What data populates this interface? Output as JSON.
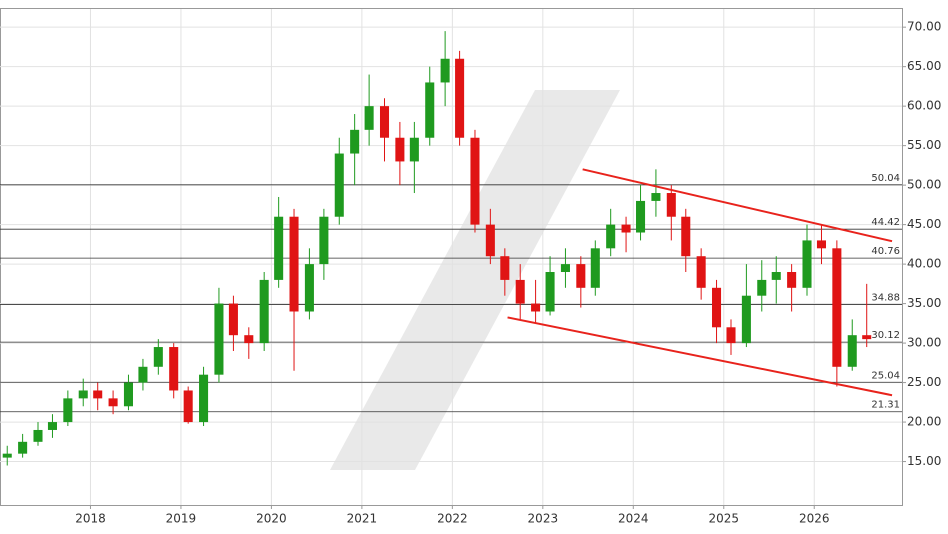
{
  "chart_data": {
    "type": "candlestick",
    "x": [
      2017.08,
      2017.25,
      2017.42,
      2017.58,
      2017.75,
      2017.92,
      2018.08,
      2018.25,
      2018.42,
      2018.58,
      2018.75,
      2018.92,
      2019.08,
      2019.25,
      2019.42,
      2019.58,
      2019.75,
      2019.92,
      2020.08,
      2020.25,
      2020.42,
      2020.58,
      2020.75,
      2020.92,
      2021.08,
      2021.25,
      2021.42,
      2021.58,
      2021.75,
      2021.92,
      2022.08,
      2022.25,
      2022.42,
      2022.58,
      2022.75,
      2022.92,
      2023.08,
      2023.25,
      2023.42,
      2023.58,
      2023.75,
      2023.92,
      2024.08,
      2024.25,
      2024.42,
      2024.58,
      2024.75,
      2024.92,
      2025.08,
      2025.25,
      2025.42,
      2025.58,
      2025.75,
      2025.92,
      2026.08,
      2026.25,
      2026.42,
      2026.58
    ],
    "open": [
      15.5,
      16,
      17.5,
      19,
      20,
      23,
      24,
      23,
      22,
      25,
      27,
      29.5,
      24,
      20,
      26,
      35,
      31,
      30,
      38,
      46,
      34,
      40,
      46,
      54,
      57,
      60,
      56,
      53,
      56,
      63,
      66,
      56,
      45,
      41,
      38,
      35,
      34,
      39,
      40,
      37,
      42,
      45,
      44,
      48,
      49,
      46,
      41,
      37,
      32,
      30,
      36,
      38,
      39,
      37,
      43,
      42,
      27,
      31
    ],
    "high": [
      17,
      18.5,
      20,
      21,
      24,
      25.5,
      25,
      24,
      26,
      28,
      30.5,
      30,
      24.5,
      27,
      37,
      36,
      32,
      39,
      48.5,
      47,
      42,
      47,
      56,
      59,
      64,
      61,
      58,
      58,
      65,
      69.5,
      67,
      57,
      47,
      42,
      40,
      38,
      41,
      42,
      41,
      43,
      47,
      46,
      50,
      52,
      50,
      47,
      42,
      38,
      33,
      40,
      40.5,
      41,
      40,
      45,
      45,
      43,
      33,
      37.5
    ],
    "low": [
      14.5,
      15.5,
      17,
      18,
      19.5,
      22,
      21.5,
      21,
      21.5,
      24,
      26,
      23,
      19.8,
      19.5,
      25,
      29,
      28,
      29,
      37,
      26.5,
      33,
      38,
      45,
      50,
      55,
      53,
      50,
      49,
      55,
      60,
      55,
      44,
      40,
      36,
      33,
      32.5,
      33.5,
      37,
      34.5,
      36,
      41,
      41.5,
      43,
      46,
      43,
      39,
      35.5,
      30,
      28.5,
      29.5,
      34,
      35,
      34,
      36,
      40,
      24.5,
      26.5,
      29.5
    ],
    "close": [
      16,
      17.5,
      19,
      20,
      23,
      24,
      23,
      22,
      25,
      27,
      29.5,
      24,
      20,
      26,
      35,
      31,
      30,
      38,
      46,
      34,
      40,
      46,
      54,
      57,
      60,
      56,
      53,
      56,
      63,
      66,
      56,
      45,
      41,
      38,
      35,
      34,
      39,
      40,
      37,
      42,
      45,
      44,
      48,
      49,
      46,
      41,
      37,
      32,
      30,
      36,
      38,
      39,
      37,
      43,
      42,
      27,
      31,
      30.5
    ],
    "up_color": "#1f9a1f",
    "down_color": "#e01414",
    "xlim": [
      2017.0,
      2026.97
    ],
    "ylim": [
      9.5,
      72.3
    ],
    "xticks": [
      2018,
      2019,
      2020,
      2021,
      2022,
      2023,
      2024,
      2025,
      2026
    ],
    "yticks": [
      {
        "value": 15,
        "label": "15.00"
      },
      {
        "value": 20,
        "label": "20.00"
      },
      {
        "value": 25,
        "label": "25.00"
      },
      {
        "value": 30,
        "label": "30.00"
      },
      {
        "value": 35,
        "label": "35.00"
      },
      {
        "value": 40,
        "label": "40.00"
      },
      {
        "value": 45,
        "label": "45.00"
      },
      {
        "value": 50,
        "label": "50.00"
      },
      {
        "value": 55,
        "label": "55.00"
      },
      {
        "value": 60,
        "label": "60.00"
      },
      {
        "value": 65,
        "label": "65.00"
      },
      {
        "value": 70,
        "label": "70.00"
      }
    ],
    "grid": true,
    "levels": [
      50.04,
      44.42,
      40.76,
      34.88,
      30.12,
      25.04,
      21.31
    ],
    "trendlines": [
      {
        "x": [
          2023.44,
          2026.86
        ],
        "y": [
          52.0,
          42.9
        ]
      },
      {
        "x": [
          2022.61,
          2026.86
        ],
        "y": [
          33.25,
          23.4
        ]
      }
    ],
    "trend_color": "#e8231c"
  }
}
